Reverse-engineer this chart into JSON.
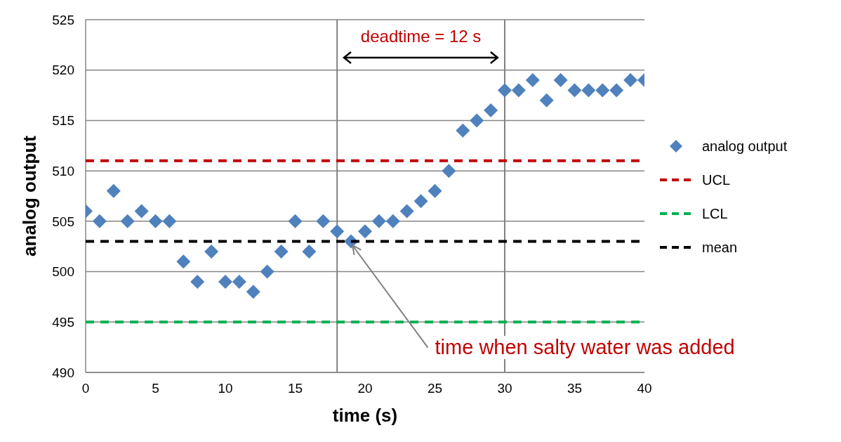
{
  "chart_data": {
    "type": "scatter",
    "xlabel": "time (s)",
    "ylabel": "analog output",
    "x": [
      0,
      1,
      2,
      3,
      4,
      5,
      6,
      7,
      8,
      9,
      10,
      11,
      12,
      13,
      14,
      15,
      16,
      17,
      18,
      19,
      20,
      21,
      22,
      23,
      24,
      25,
      26,
      27,
      28,
      29,
      30,
      31,
      32,
      33,
      34,
      35,
      36,
      37,
      38,
      39,
      40
    ],
    "series": [
      {
        "name": "analog output",
        "type": "scatter",
        "color": "#4f81bd",
        "marker": "diamond",
        "values": [
          506,
          505,
          508,
          505,
          506,
          505,
          505,
          501,
          499,
          502,
          499,
          499,
          498,
          500,
          502,
          505,
          502,
          505,
          504,
          503,
          504,
          505,
          505,
          506,
          507,
          508,
          510,
          514,
          515,
          516,
          518,
          518,
          519,
          517,
          519,
          518,
          518,
          518,
          518,
          519,
          519
        ]
      },
      {
        "name": "UCL",
        "type": "line",
        "color": "#c00000",
        "line_style": "dashed",
        "marker": "none",
        "values": [
          511,
          511,
          511,
          511,
          511,
          511,
          511,
          511,
          511,
          511,
          511,
          511,
          511,
          511,
          511,
          511,
          511,
          511,
          511,
          511,
          511,
          511,
          511,
          511,
          511,
          511,
          511,
          511,
          511,
          511,
          511,
          511,
          511,
          511,
          511,
          511,
          511,
          511,
          511,
          511,
          511
        ]
      },
      {
        "name": "LCL",
        "type": "line",
        "color": "#00b050",
        "line_style": "dashed",
        "marker": "none",
        "values": [
          495,
          495,
          495,
          495,
          495,
          495,
          495,
          495,
          495,
          495,
          495,
          495,
          495,
          495,
          495,
          495,
          495,
          495,
          495,
          495,
          495,
          495,
          495,
          495,
          495,
          495,
          495,
          495,
          495,
          495,
          495,
          495,
          495,
          495,
          495,
          495,
          495,
          495,
          495,
          495,
          495
        ]
      },
      {
        "name": "mean",
        "type": "line",
        "color": "#000000",
        "line_style": "dashed",
        "marker": "none",
        "values": [
          503,
          503,
          503,
          503,
          503,
          503,
          503,
          503,
          503,
          503,
          503,
          503,
          503,
          503,
          503,
          503,
          503,
          503,
          503,
          503,
          503,
          503,
          503,
          503,
          503,
          503,
          503,
          503,
          503,
          503,
          503,
          503,
          503,
          503,
          503,
          503,
          503,
          503,
          503,
          503,
          503
        ]
      }
    ],
    "xlim": [
      0,
      40
    ],
    "xticks": [
      0,
      5,
      10,
      15,
      20,
      25,
      30,
      35,
      40
    ],
    "ylim": [
      490,
      525
    ],
    "yticks": [
      490,
      495,
      500,
      505,
      510,
      515,
      520,
      525
    ],
    "grid": "y",
    "legend": "right",
    "ref_lines": [
      {
        "axis": "x",
        "value": 18,
        "color": "#808080"
      },
      {
        "axis": "x",
        "value": 30,
        "color": "#808080"
      }
    ],
    "annotations": [
      "deadtime = 12 s",
      {
        "text": "time when salty water was added",
        "x": 19,
        "y": 503
      }
    ]
  }
}
